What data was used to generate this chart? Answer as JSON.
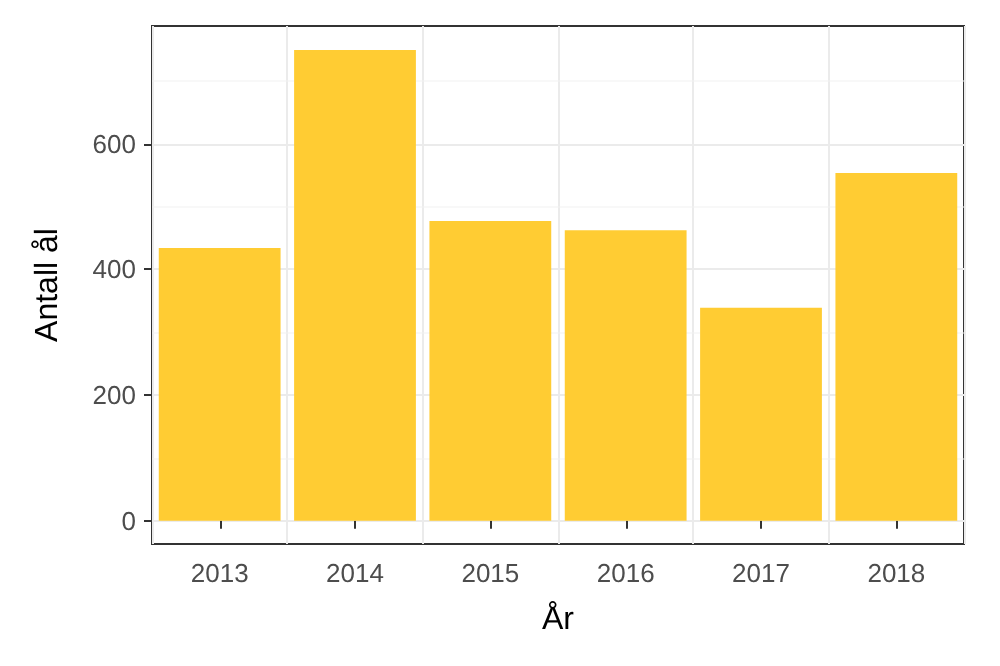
{
  "chart_data": {
    "type": "bar",
    "xlabel": "År",
    "ylabel": "Antall ål",
    "categories": [
      "2013",
      "2014",
      "2015",
      "2016",
      "2017",
      "2018"
    ],
    "values": [
      434,
      749,
      477,
      462,
      339,
      553
    ],
    "color": "#ffcc33",
    "ylim": [
      -37,
      787
    ],
    "yticks": [
      0,
      200,
      400,
      600
    ],
    "grid": true
  }
}
